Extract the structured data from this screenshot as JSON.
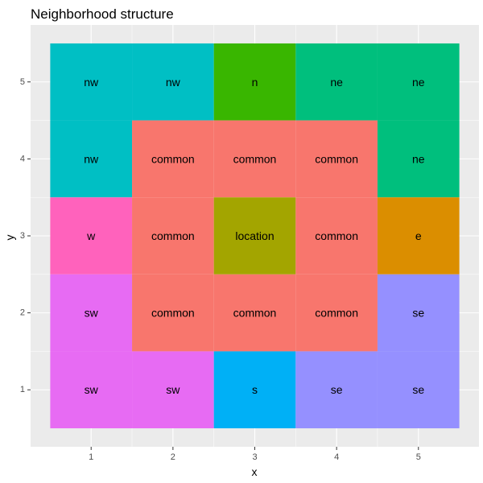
{
  "chart_data": {
    "type": "heatmap",
    "title": "Neighborhood structure",
    "xlabel": "x",
    "ylabel": "y",
    "x_ticks": [
      "1",
      "2",
      "3",
      "4",
      "5"
    ],
    "y_ticks": [
      "1",
      "2",
      "3",
      "4",
      "5"
    ],
    "xlim": [
      0.26,
      5.74
    ],
    "ylim": [
      0.26,
      5.74
    ],
    "grid": true,
    "legend": "none",
    "colors": {
      "common": "#F8766D",
      "e": "#DB8E00",
      "location": "#A3A500",
      "n": "#39B600",
      "ne": "#00BF7D",
      "nw": "#00BFC4",
      "s": "#00B0F6",
      "se": "#9590FF",
      "sw": "#E76BF3",
      "w": "#FF62BC"
    },
    "tiles": [
      {
        "x": 1,
        "y": 5,
        "label": "nw"
      },
      {
        "x": 2,
        "y": 5,
        "label": "nw"
      },
      {
        "x": 3,
        "y": 5,
        "label": "n"
      },
      {
        "x": 4,
        "y": 5,
        "label": "ne"
      },
      {
        "x": 5,
        "y": 5,
        "label": "ne"
      },
      {
        "x": 1,
        "y": 4,
        "label": "nw"
      },
      {
        "x": 2,
        "y": 4,
        "label": "common"
      },
      {
        "x": 3,
        "y": 4,
        "label": "common"
      },
      {
        "x": 4,
        "y": 4,
        "label": "common"
      },
      {
        "x": 5,
        "y": 4,
        "label": "ne"
      },
      {
        "x": 1,
        "y": 3,
        "label": "w"
      },
      {
        "x": 2,
        "y": 3,
        "label": "common"
      },
      {
        "x": 3,
        "y": 3,
        "label": "location"
      },
      {
        "x": 4,
        "y": 3,
        "label": "common"
      },
      {
        "x": 5,
        "y": 3,
        "label": "e"
      },
      {
        "x": 1,
        "y": 2,
        "label": "sw"
      },
      {
        "x": 2,
        "y": 2,
        "label": "common"
      },
      {
        "x": 3,
        "y": 2,
        "label": "common"
      },
      {
        "x": 4,
        "y": 2,
        "label": "common"
      },
      {
        "x": 5,
        "y": 2,
        "label": "se"
      },
      {
        "x": 1,
        "y": 1,
        "label": "sw"
      },
      {
        "x": 2,
        "y": 1,
        "label": "sw"
      },
      {
        "x": 3,
        "y": 1,
        "label": "s"
      },
      {
        "x": 4,
        "y": 1,
        "label": "se"
      },
      {
        "x": 5,
        "y": 1,
        "label": "se"
      }
    ]
  }
}
